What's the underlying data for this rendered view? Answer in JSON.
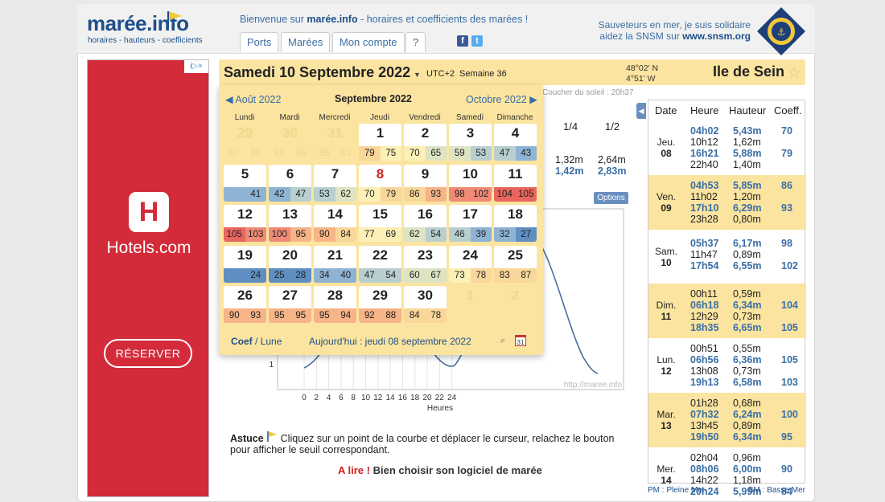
{
  "site": {
    "logo_name": "marée.info",
    "logo_tagline": "horaires - hauteurs - coefficients",
    "welcome_prefix": "Bienvenue sur ",
    "welcome_brand": "marée.info",
    "welcome_suffix": " - horaires et coefficients des marées !",
    "nav": [
      "Ports",
      "Marées",
      "Mon compte",
      "?"
    ],
    "snsm_line1": "Sauveteurs en mer, je suis solidaire",
    "snsm_line2": "aidez la SNSM sur ",
    "snsm_link": "www.snsm.org"
  },
  "ad": {
    "badge": "i▷×",
    "brand": "Hotels.com",
    "logo_letter": "H",
    "cta": "RÉSERVER"
  },
  "header": {
    "date": "Samedi 10 Septembre 2022",
    "utc": "UTC+2",
    "week": "Semaine 36",
    "lat": "48°02' N",
    "lon": "4°51' W",
    "place": "Ile de Sein",
    "sunset": "Coucher du soleil : 20h37"
  },
  "calendar": {
    "prev": "Août 2022",
    "current": "Septembre 2022",
    "next": "Octobre 2022",
    "days": [
      "Lundi",
      "Mardi",
      "Mercredi",
      "Jeudi",
      "Vendredi",
      "Samedi",
      "Dimanche"
    ],
    "weeks": [
      [
        {
          "d": "29",
          "a": "87",
          "b": "88",
          "o": true
        },
        {
          "d": "30",
          "a": "88",
          "b": "86",
          "o": true
        },
        {
          "d": "31",
          "a": "85",
          "b": "81",
          "o": true
        },
        {
          "d": "1",
          "a": "79",
          "b": "75"
        },
        {
          "d": "2",
          "a": "70",
          "b": "65"
        },
        {
          "d": "3",
          "a": "59",
          "b": "53"
        },
        {
          "d": "4",
          "a": "47",
          "b": "43"
        }
      ],
      [
        {
          "d": "5",
          "a": "",
          "b": "41"
        },
        {
          "d": "6",
          "a": "42",
          "b": "47"
        },
        {
          "d": "7",
          "a": "53",
          "b": "62"
        },
        {
          "d": "8",
          "a": "70",
          "b": "79",
          "today": true
        },
        {
          "d": "9",
          "a": "86",
          "b": "93"
        },
        {
          "d": "10",
          "a": "98",
          "b": "102"
        },
        {
          "d": "11",
          "a": "104",
          "b": "105"
        }
      ],
      [
        {
          "d": "12",
          "a": "105",
          "b": "103"
        },
        {
          "d": "13",
          "a": "100",
          "b": "95"
        },
        {
          "d": "14",
          "a": "90",
          "b": "84"
        },
        {
          "d": "15",
          "a": "77",
          "b": "69"
        },
        {
          "d": "16",
          "a": "62",
          "b": "54"
        },
        {
          "d": "17",
          "a": "46",
          "b": "39"
        },
        {
          "d": "18",
          "a": "32",
          "b": "27"
        }
      ],
      [
        {
          "d": "19",
          "a": "",
          "b": "24"
        },
        {
          "d": "20",
          "a": "25",
          "b": "28"
        },
        {
          "d": "21",
          "a": "34",
          "b": "40"
        },
        {
          "d": "22",
          "a": "47",
          "b": "54"
        },
        {
          "d": "23",
          "a": "60",
          "b": "67"
        },
        {
          "d": "24",
          "a": "73",
          "b": "78"
        },
        {
          "d": "25",
          "a": "83",
          "b": "87"
        }
      ],
      [
        {
          "d": "26",
          "a": "90",
          "b": "93"
        },
        {
          "d": "27",
          "a": "95",
          "b": "95"
        },
        {
          "d": "28",
          "a": "95",
          "b": "94"
        },
        {
          "d": "29",
          "a": "92",
          "b": "88"
        },
        {
          "d": "30",
          "a": "84",
          "b": "78"
        },
        {
          "d": "1",
          "a": "",
          "b": "",
          "o": true
        },
        {
          "d": "2",
          "a": "",
          "b": "",
          "o": true
        }
      ]
    ],
    "foot_coef": "Coef",
    "foot_sep": "/",
    "foot_lune": "Lune",
    "today_text": "Aujourd'hui : jeudi 08 septembre 2022"
  },
  "colors": {
    "c20": "#5f8fc2",
    "c35": "#8fb3d3",
    "c50": "#b9cfcf",
    "c60": "#dde3c3",
    "c70": "#fbf0b5",
    "c80": "#f9d79a",
    "c90": "#f6b487",
    "c100": "#f08a77",
    "c110": "#e8665f"
  },
  "fractions": {
    "q1": "1/4",
    "q2": "1/2",
    "v1a": "1,32m",
    "v1b": "1,42m",
    "v2a": "2,64m",
    "v2b": "2,83m"
  },
  "options_label": "Options",
  "chart_data": {
    "type": "line",
    "xlabel": "Heures",
    "x_ticks": [
      "0",
      "2",
      "4",
      "6",
      "8",
      "10",
      "12",
      "14",
      "16",
      "18",
      "20",
      "22",
      "24"
    ],
    "y_ticks": [
      "1"
    ],
    "watermark": "http://maree.info"
  },
  "tide_table": {
    "headers": [
      "Date",
      "Heure",
      "Hauteur",
      "Coeff."
    ],
    "days": [
      {
        "dn": "Jeu.",
        "dd": "08",
        "alt": false,
        "rows": [
          {
            "t": "04h02",
            "h": "5,43m",
            "c": "70",
            "pm": true
          },
          {
            "t": "10h12",
            "h": "1,62m",
            "c": "",
            "pm": false
          },
          {
            "t": "16h21",
            "h": "5,88m",
            "c": "79",
            "pm": true
          },
          {
            "t": "22h40",
            "h": "1,40m",
            "c": "",
            "pm": false
          }
        ]
      },
      {
        "dn": "Ven.",
        "dd": "09",
        "alt": true,
        "rows": [
          {
            "t": "04h53",
            "h": "5,85m",
            "c": "86",
            "pm": true
          },
          {
            "t": "11h02",
            "h": "1,20m",
            "c": "",
            "pm": false
          },
          {
            "t": "17h10",
            "h": "6,29m",
            "c": "93",
            "pm": true
          },
          {
            "t": "23h28",
            "h": "0,80m",
            "c": "",
            "pm": false
          }
        ]
      },
      {
        "dn": "Sam.",
        "dd": "10",
        "alt": false,
        "rows": [
          {
            "t": "05h37",
            "h": "6,17m",
            "c": "98",
            "pm": true
          },
          {
            "t": "11h47",
            "h": "0,89m",
            "c": "",
            "pm": false
          },
          {
            "t": "17h54",
            "h": "6,55m",
            "c": "102",
            "pm": true
          }
        ]
      },
      {
        "dn": "Dim.",
        "dd": "11",
        "alt": true,
        "rows": [
          {
            "t": "00h11",
            "h": "0,59m",
            "c": "",
            "pm": false
          },
          {
            "t": "06h18",
            "h": "6,34m",
            "c": "104",
            "pm": true
          },
          {
            "t": "12h29",
            "h": "0,73m",
            "c": "",
            "pm": false
          },
          {
            "t": "18h35",
            "h": "6,65m",
            "c": "105",
            "pm": true
          }
        ]
      },
      {
        "dn": "Lun.",
        "dd": "12",
        "alt": false,
        "rows": [
          {
            "t": "00h51",
            "h": "0,55m",
            "c": "",
            "pm": false
          },
          {
            "t": "06h56",
            "h": "6,36m",
            "c": "105",
            "pm": true
          },
          {
            "t": "13h08",
            "h": "0,73m",
            "c": "",
            "pm": false
          },
          {
            "t": "19h13",
            "h": "6,58m",
            "c": "103",
            "pm": true
          }
        ]
      },
      {
        "dn": "Mar.",
        "dd": "13",
        "alt": true,
        "rows": [
          {
            "t": "01h28",
            "h": "0,68m",
            "c": "",
            "pm": false
          },
          {
            "t": "07h32",
            "h": "6,24m",
            "c": "100",
            "pm": true
          },
          {
            "t": "13h45",
            "h": "0,89m",
            "c": "",
            "pm": false
          },
          {
            "t": "19h50",
            "h": "6,34m",
            "c": "95",
            "pm": true
          }
        ]
      },
      {
        "dn": "Mer.",
        "dd": "14",
        "alt": false,
        "rows": [
          {
            "t": "02h04",
            "h": "0,96m",
            "c": "",
            "pm": false
          },
          {
            "t": "08h06",
            "h": "6,00m",
            "c": "90",
            "pm": true
          },
          {
            "t": "14h22",
            "h": "1,18m",
            "c": "",
            "pm": false
          },
          {
            "t": "20h24",
            "h": "5,99m",
            "c": "84",
            "pm": true
          }
        ]
      }
    ],
    "legend_pm": "PM : Pleine Mer",
    "legend_bm": "BM : Basse Mer"
  },
  "tip": {
    "label": "Astuce",
    "text": "Cliquez sur un point de la courbe et déplacer le curseur, relachez le bouton pour afficher le seuil correspondant."
  },
  "alire": {
    "label": "A lire !",
    "text": " Bien choisir son logiciel de marée"
  }
}
